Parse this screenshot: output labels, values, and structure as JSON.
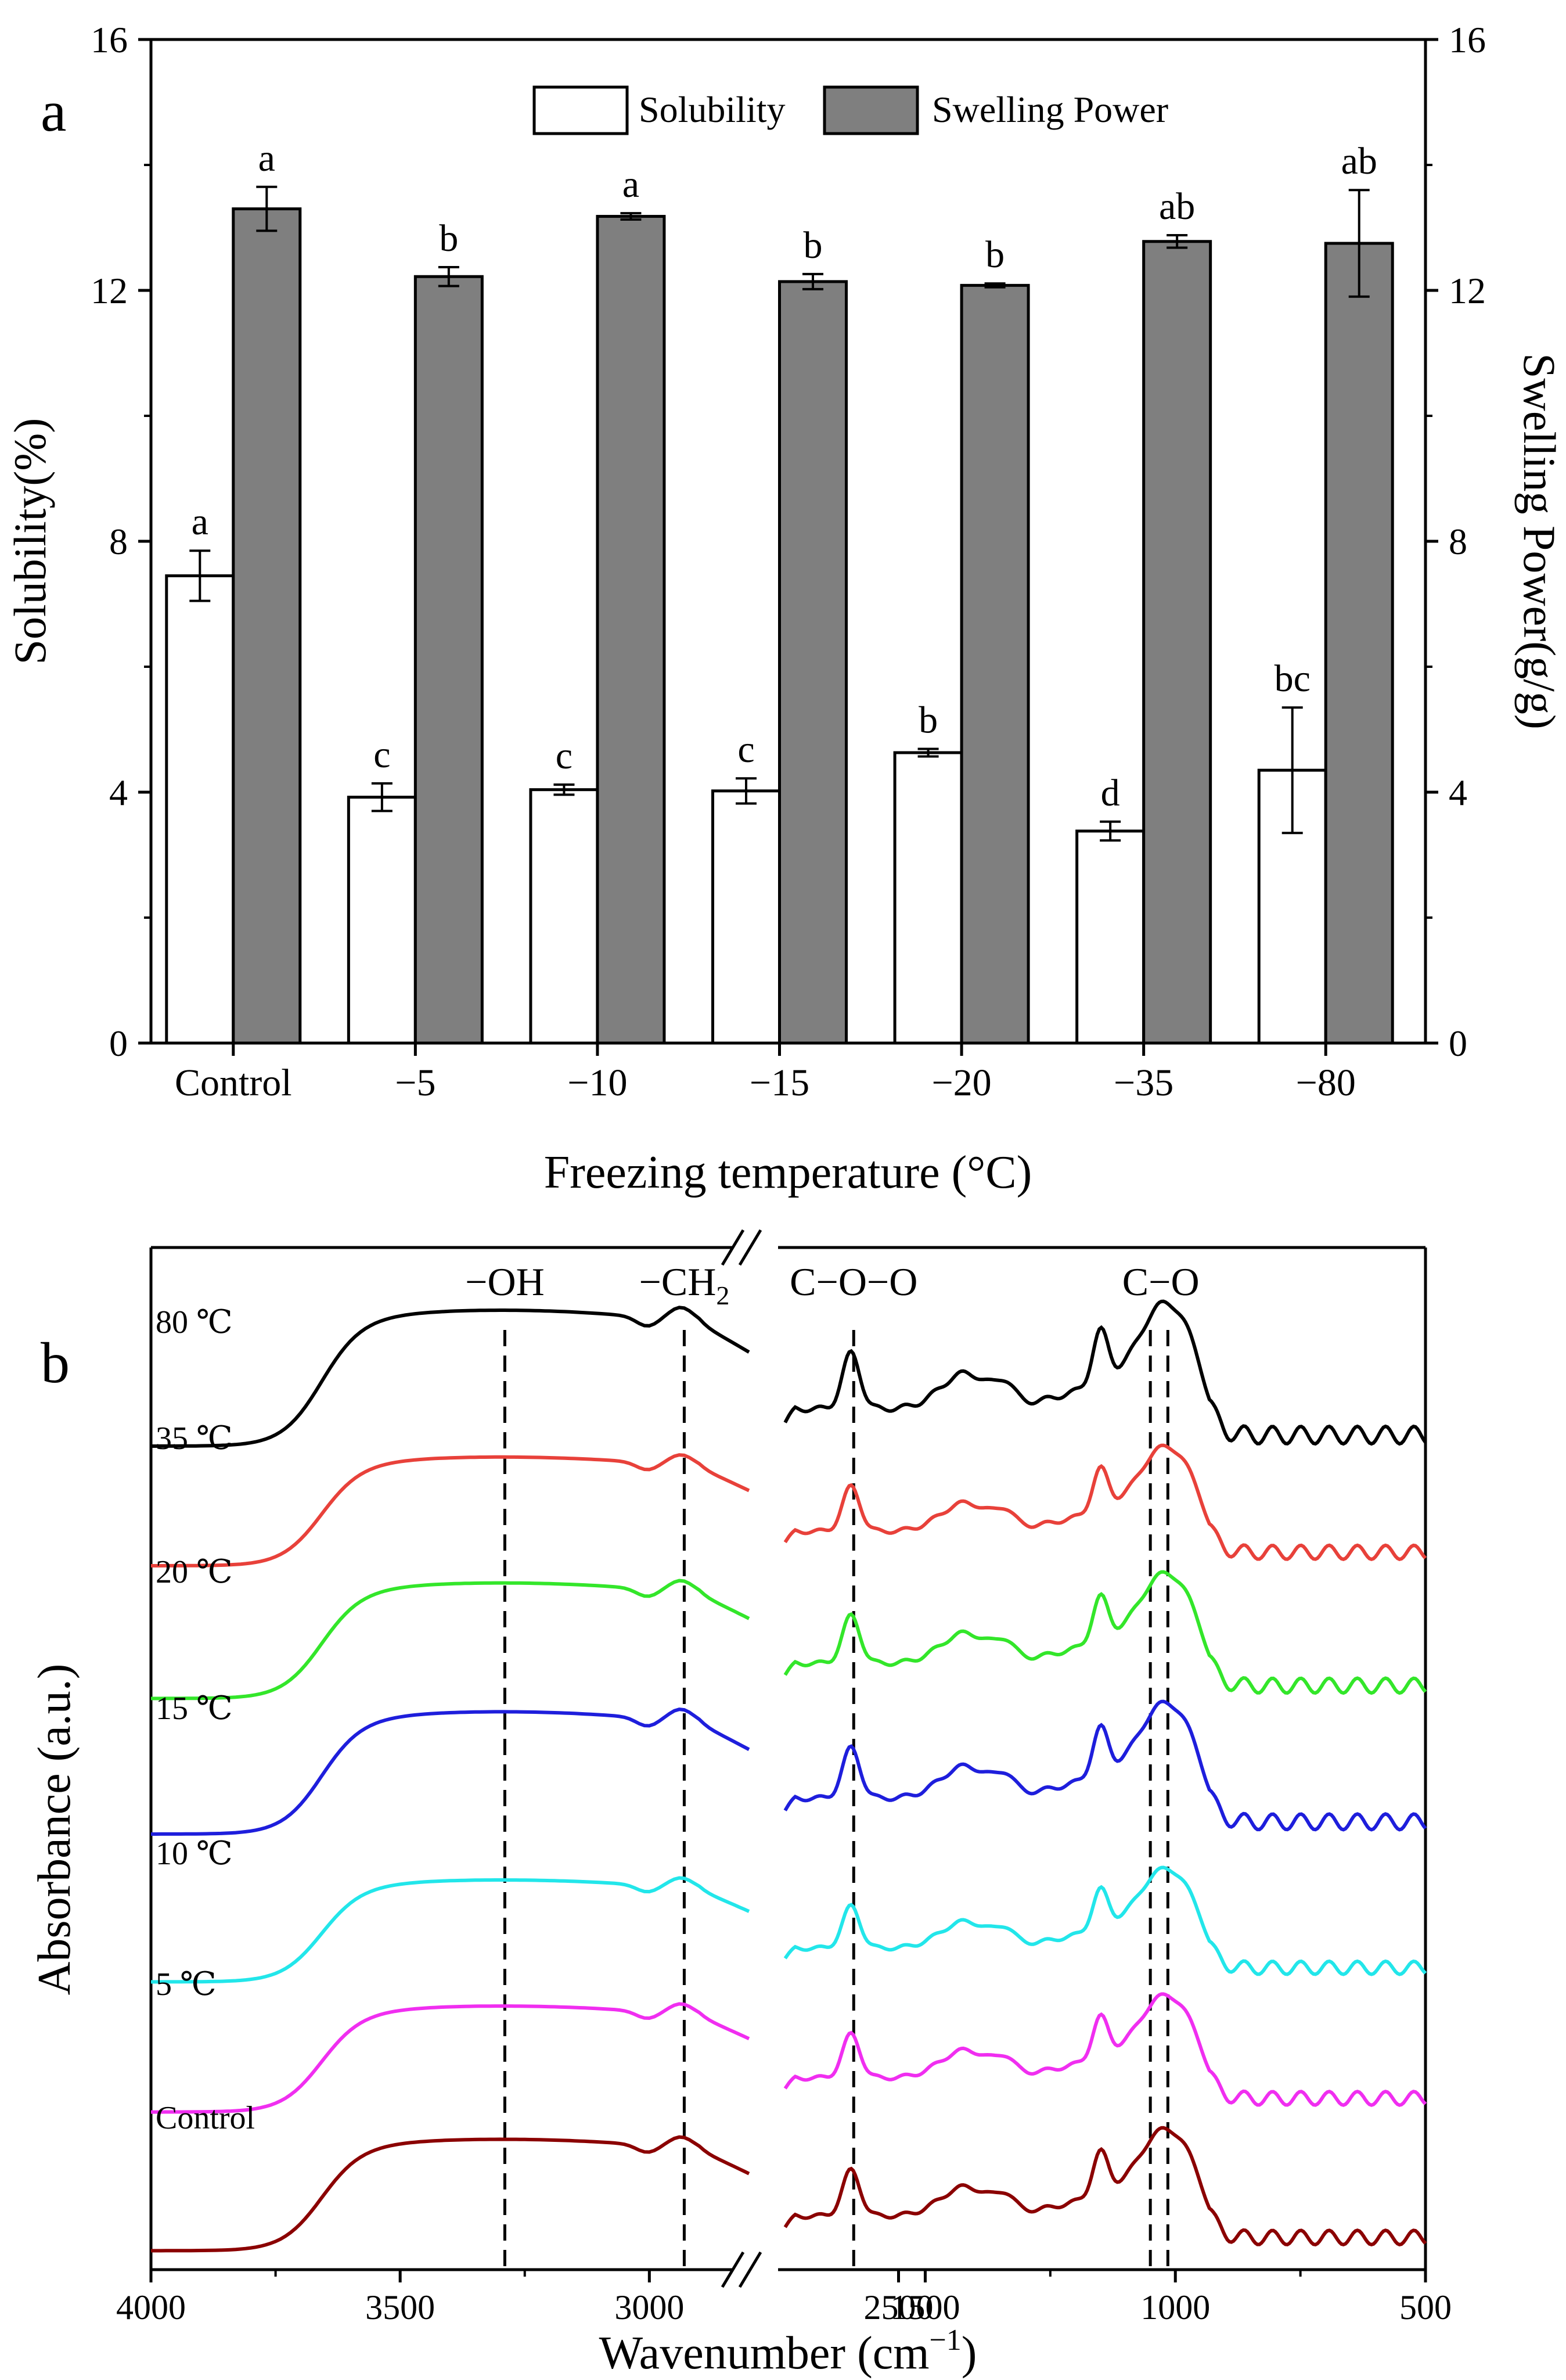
{
  "chart_data": [
    {
      "panel": "a",
      "type": "bar",
      "categories": [
        "Control",
        "−5",
        "−10",
        "−15",
        "−20",
        "−35",
        "−80"
      ],
      "xlabel": "Freezing temperature (°C)",
      "ylabel": "Solubility(%)",
      "ylabel_right": "Swelling Power(g/g)",
      "ylim": [
        0,
        16
      ],
      "yticks": [
        "0",
        "4",
        "8",
        "12",
        "16"
      ],
      "series": [
        {
          "name": "Solubility",
          "color": "#ffffff",
          "values": [
            7.45,
            3.92,
            4.04,
            4.02,
            4.63,
            3.38,
            4.35
          ],
          "errors": [
            0.4,
            0.22,
            0.08,
            0.2,
            0.06,
            0.15,
            1.0
          ],
          "letters": [
            "a",
            "c",
            "c",
            "c",
            "b",
            "d",
            "bc"
          ]
        },
        {
          "name": "Swelling Power",
          "color": "#7f7f7f",
          "values": [
            13.3,
            12.22,
            13.18,
            12.14,
            12.08,
            12.78,
            12.75
          ],
          "errors": [
            0.35,
            0.15,
            0.05,
            0.12,
            0.03,
            0.1,
            0.85
          ],
          "letters": [
            "a",
            "b",
            "a",
            "b",
            "b",
            "ab",
            "ab"
          ]
        }
      ]
    },
    {
      "panel": "b",
      "type": "line",
      "title": "",
      "xlabel_main": "Wavenumber (cm",
      "xlabel_sup": "−1",
      "xlabel_end": ")",
      "ylabel": "Absorbance (a.u.)",
      "x_segments": [
        [
          4000,
          2800
        ],
        [
          1800,
          500
        ]
      ],
      "xticks": [
        "4000",
        "3500",
        "3000",
        "2500",
        "1500",
        "1000",
        "500"
      ],
      "peaks": [
        {
          "label": "−OH",
          "x": 3290
        },
        {
          "label": "−CH",
          "sub": "2",
          "x": 2930
        },
        {
          "label": "C−O−O",
          "x": 1643
        },
        {
          "label": "C−O",
          "x": 1050
        },
        {
          "label": "",
          "x": 1015
        }
      ],
      "series": [
        {
          "name": "80 ℃",
          "color": "#000000",
          "amplitude": 1.0
        },
        {
          "name": "35 ℃",
          "color": "#e8413a",
          "amplitude": 0.8
        },
        {
          "name": "20 ℃",
          "color": "#33e62a",
          "amplitude": 0.85
        },
        {
          "name": "15 ℃",
          "color": "#1e1edc",
          "amplitude": 0.9
        },
        {
          "name": "10 ℃",
          "color": "#22e6ea",
          "amplitude": 0.75
        },
        {
          "name": "5 ℃",
          "color": "#f02ef0",
          "amplitude": 0.78
        },
        {
          "name": "Control",
          "color": "#8b0000",
          "amplitude": 0.82
        }
      ]
    }
  ],
  "panel_labels": {
    "a": "a",
    "b": "b"
  }
}
